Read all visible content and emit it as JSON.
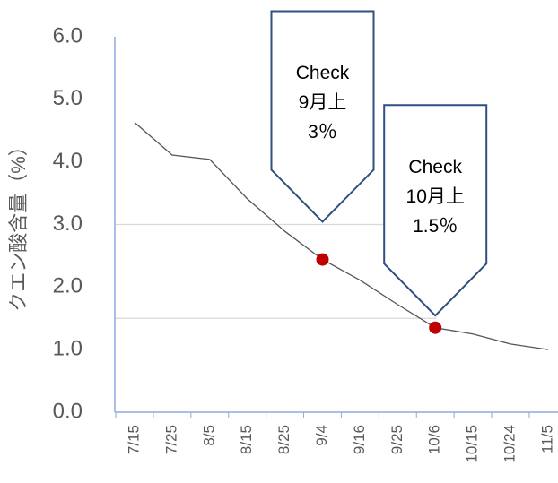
{
  "chart_data": {
    "type": "line",
    "y_label": "クエン酸含量（%）",
    "categories": [
      "7/15",
      "7/25",
      "8/5",
      "8/15",
      "8/25",
      "9/4",
      "9/16",
      "9/25",
      "10/6",
      "10/15",
      "10/24",
      "11/5"
    ],
    "series": [
      {
        "color": "#555555",
        "values": [
          4.63,
          4.11,
          4.04,
          3.41,
          2.89,
          2.44,
          2.11,
          1.72,
          1.35,
          1.25,
          1.09,
          1.0
        ]
      },
      {
        "color": "#c00000",
        "marker_only": true,
        "values": [
          null,
          null,
          null,
          null,
          null,
          2.44,
          null,
          null,
          1.35,
          null,
          null,
          null
        ]
      }
    ],
    "ylim": [
      0,
      6
    ],
    "yticks": [
      {
        "value": 0,
        "label": "0.0"
      },
      {
        "value": 1,
        "label": "1.0"
      },
      {
        "value": 2,
        "label": "2.0"
      },
      {
        "value": 3,
        "label": "3.0"
      },
      {
        "value": 4,
        "label": "4.0"
      },
      {
        "value": 5,
        "label": "5.0"
      },
      {
        "value": 6,
        "label": "6.0"
      }
    ],
    "reference_lines": [
      3,
      1.5
    ],
    "annotations": [
      {
        "category": "9/4",
        "level": 3,
        "lines": [
          "Check",
          "9月上",
          "3％"
        ]
      },
      {
        "category": "10/6",
        "level": 1.5,
        "lines": [
          "Check",
          "10月上",
          "1.5％"
        ]
      }
    ]
  }
}
